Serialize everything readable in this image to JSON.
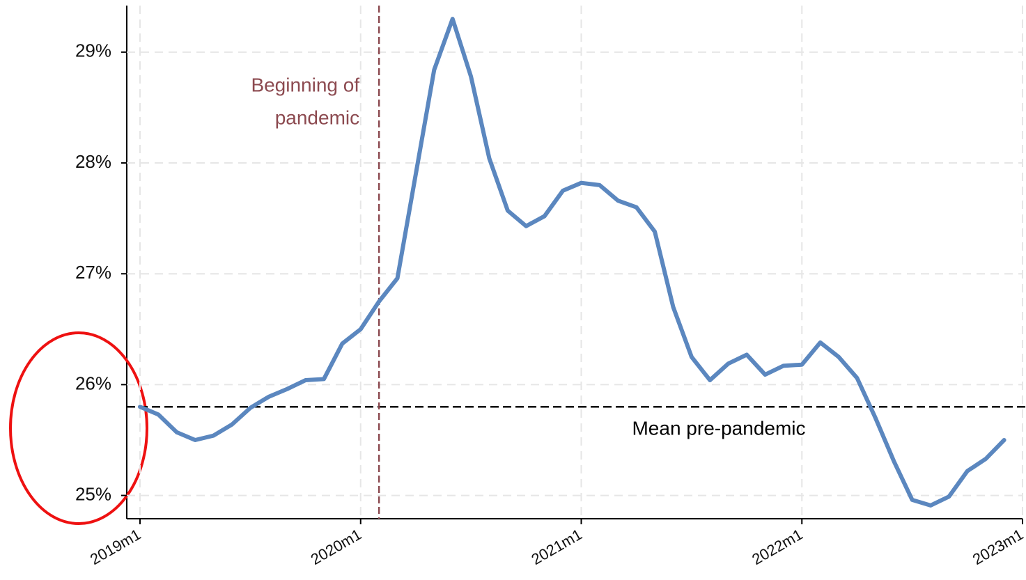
{
  "chart_data": {
    "type": "line",
    "x": [
      2019,
      2019.0833,
      2019.1667,
      2019.25,
      2019.3333,
      2019.4167,
      2019.5,
      2019.5833,
      2019.6667,
      2019.75,
      2019.8333,
      2019.9167,
      2020,
      2020.0833,
      2020.1667,
      2020.25,
      2020.3333,
      2020.4167,
      2020.5,
      2020.5833,
      2020.6667,
      2020.75,
      2020.8333,
      2020.9167,
      2021,
      2021.0833,
      2021.1667,
      2021.25,
      2021.3333,
      2021.4167,
      2021.5,
      2021.5833,
      2021.6667,
      2021.75,
      2021.8333,
      2021.9167,
      2022,
      2022.0833,
      2022.1667,
      2022.25,
      2022.3333,
      2022.4167,
      2022.5,
      2022.5833,
      2022.6667,
      2022.75,
      2022.8333,
      2022.9167
    ],
    "series": [
      {
        "color": "#5b87bf",
        "values": [
          25.8,
          25.73,
          25.57,
          25.5,
          25.54,
          25.64,
          25.79,
          25.89,
          25.96,
          26.04,
          26.05,
          26.37,
          26.5,
          26.75,
          26.96,
          27.9,
          28.84,
          29.3,
          28.78,
          28.04,
          27.57,
          27.43,
          27.52,
          27.75,
          27.82,
          27.8,
          27.66,
          27.6,
          27.38,
          26.7,
          26.25,
          26.04,
          26.19,
          26.27,
          26.09,
          26.17,
          26.18,
          26.38,
          26.25,
          26.06,
          25.7,
          25.31,
          24.96,
          24.91,
          24.99,
          25.22,
          25.33,
          25.5
        ]
      }
    ],
    "xlim": [
      2018.94,
      2023
    ],
    "xticks": [
      {
        "value": 2019,
        "label": "2019m1"
      },
      {
        "value": 2020,
        "label": "2020m1"
      },
      {
        "value": 2021,
        "label": "2021m1"
      },
      {
        "value": 2022,
        "label": "2022m1"
      },
      {
        "value": 2023,
        "label": "2023m1"
      }
    ],
    "ylim": [
      24.79,
      29.42
    ],
    "yticks": [
      {
        "value": 25,
        "label": "25%"
      },
      {
        "value": 26,
        "label": "26%"
      },
      {
        "value": 27,
        "label": "27%"
      },
      {
        "value": 28,
        "label": "28%"
      },
      {
        "value": 29,
        "label": "29%"
      }
    ],
    "grid": true,
    "vline": {
      "x": 2020.0833,
      "color": "#8c4a50",
      "label": [
        "Beginning of",
        "pandemic"
      ]
    },
    "hline": {
      "y": 25.8,
      "color": "#000000",
      "label": "Mean pre-pandemic"
    }
  }
}
